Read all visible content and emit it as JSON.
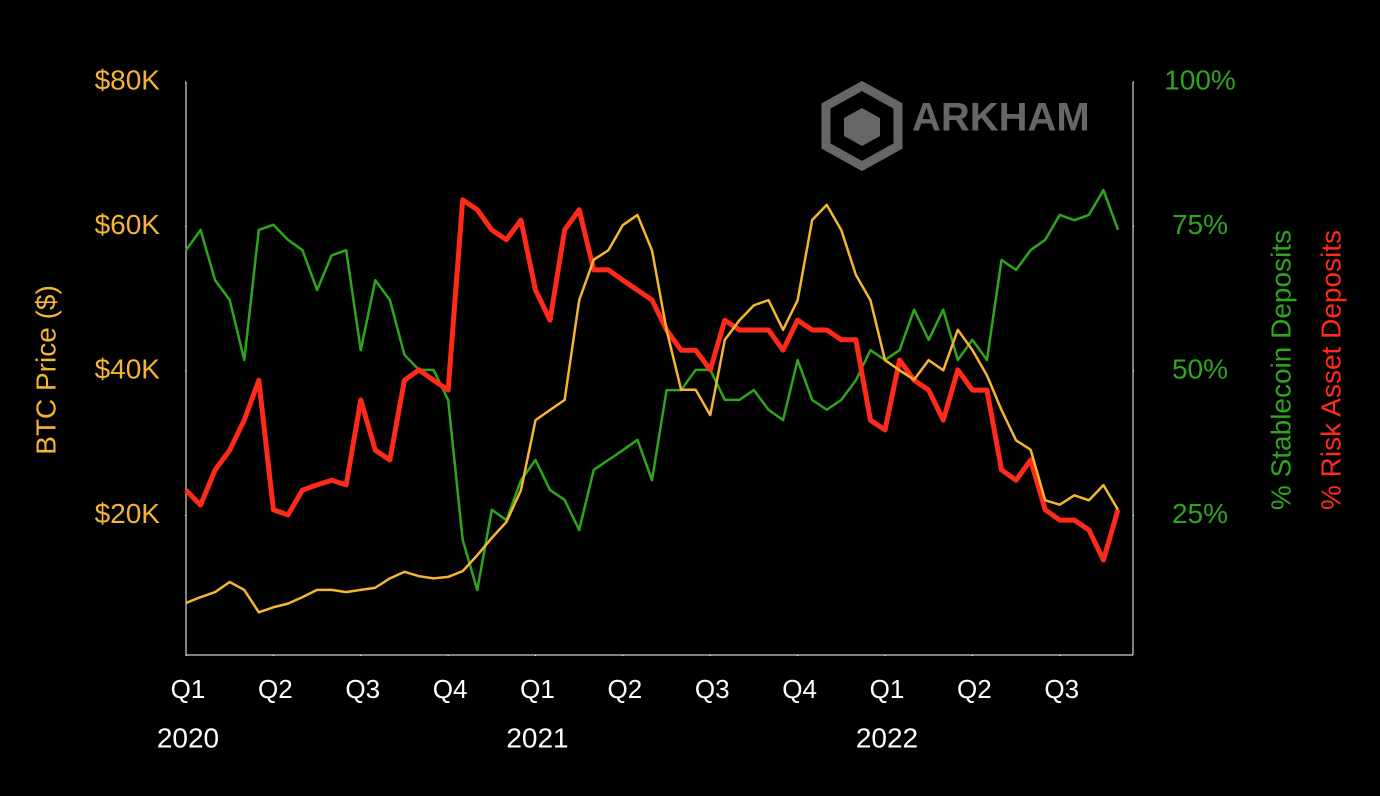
{
  "chart_data": {
    "type": "line",
    "watermark": "ARKHAM",
    "y_label": "BTC Price ($)",
    "y2_labels": [
      {
        "text": "% Stablecoin Deposits",
        "color": "#2ea61c"
      },
      {
        "text": "% Risk Asset Deposits",
        "color": "#ff2a1a"
      }
    ],
    "xlim": [
      0,
      64
    ],
    "xticks": [
      {
        "value": 0,
        "label": "Q1"
      },
      {
        "value": 6,
        "label": "Q2"
      },
      {
        "value": 12,
        "label": "Q3"
      },
      {
        "value": 18,
        "label": "Q4"
      },
      {
        "value": 24,
        "label": "Q1"
      },
      {
        "value": 30,
        "label": "Q2"
      },
      {
        "value": 36,
        "label": "Q3"
      },
      {
        "value": 42,
        "label": "Q4"
      },
      {
        "value": 48,
        "label": "Q1"
      },
      {
        "value": 54,
        "label": "Q2"
      },
      {
        "value": 60,
        "label": "Q3"
      }
    ],
    "year_labels": [
      {
        "value": 0,
        "label": "2020"
      },
      {
        "value": 24,
        "label": "2021"
      },
      {
        "value": 48,
        "label": "2022"
      }
    ],
    "ylim": [
      0,
      80000
    ],
    "yticks": [
      {
        "value": 20000,
        "label": "$20K"
      },
      {
        "value": 40000,
        "label": "$40K"
      },
      {
        "value": 60000,
        "label": "$60K"
      },
      {
        "value": 80000,
        "label": "$80K"
      }
    ],
    "y2lim": [
      0,
      100
    ],
    "y2ticks": [
      {
        "value": 25,
        "label": "25%"
      },
      {
        "value": 50,
        "label": "50%"
      },
      {
        "value": 75,
        "label": "75%"
      },
      {
        "value": 100,
        "label": "100%"
      }
    ],
    "grid": false,
    "series": [
      {
        "name": "% Stablecoin Deposits",
        "color": "#2ea61c",
        "axis": "y2",
        "width": 2.5,
        "values": [
          70.9,
          74.4,
          65.7,
          62.3,
          51.9,
          74.4,
          75.3,
          72.7,
          70.9,
          64,
          70,
          70.9,
          53.6,
          65.7,
          62.3,
          52.8,
          50.2,
          50.2,
          45,
          20.8,
          12.1,
          26,
          24.2,
          31.1,
          34.6,
          29.4,
          27.7,
          22.5,
          32.9,
          34.6,
          36.3,
          38.1,
          31.1,
          46.7,
          46.7,
          50.2,
          50.2,
          45,
          45,
          46.7,
          43.3,
          41.5,
          51.9,
          45,
          43.3,
          45,
          48.4,
          53.6,
          51.9,
          53.6,
          60.6,
          55.4,
          60.6,
          51.9,
          55.4,
          51.9,
          69.2,
          67.5,
          70.9,
          72.7,
          77,
          76.1,
          77,
          81.3,
          74.4
        ]
      },
      {
        "name": "% Risk Asset Deposits",
        "color": "#ff2a1a",
        "axis": "y2",
        "width": 5,
        "values": [
          29.4,
          26.8,
          32.9,
          36.3,
          41.5,
          48.4,
          26,
          25.1,
          29.4,
          30.3,
          31.1,
          30.3,
          45,
          36.3,
          34.6,
          48.4,
          50.2,
          48.4,
          46.7,
          79.6,
          77.9,
          74.4,
          72.7,
          76.1,
          64,
          58.8,
          74.4,
          77.9,
          67.5,
          67.5,
          65.7,
          64,
          62.3,
          57.1,
          53.6,
          53.6,
          50.2,
          58.8,
          57.1,
          57.1,
          57.1,
          53.6,
          58.8,
          57.1,
          57.1,
          55.4,
          55.4,
          41.5,
          39.8,
          51.9,
          48.4,
          46.7,
          41.5,
          50.2,
          46.7,
          46.7,
          32.9,
          31.1,
          34.6,
          26,
          24.2,
          24.2,
          22.5,
          17.3,
          26
        ]
      },
      {
        "name": "BTC Price ($)",
        "color": "#f5b52e",
        "axis": "y",
        "width": 2.5,
        "values": [
          7900,
          8700,
          9400,
          10800,
          9700,
          6600,
          7300,
          7800,
          8700,
          9700,
          9700,
          9400,
          9700,
          10000,
          11300,
          12200,
          11600,
          11300,
          11500,
          12300,
          14500,
          16900,
          19100,
          23500,
          33200,
          34600,
          36000,
          49800,
          55400,
          56700,
          60200,
          61600,
          56700,
          45700,
          37400,
          37400,
          33900,
          44300,
          47000,
          49100,
          49800,
          45700,
          49800,
          60900,
          63000,
          59500,
          53300,
          49800,
          41500,
          40100,
          38800,
          41500,
          40100,
          45700,
          42900,
          39400,
          34600,
          30400,
          29100,
          22100,
          21500,
          22800,
          22100,
          24200,
          20800
        ]
      }
    ]
  }
}
